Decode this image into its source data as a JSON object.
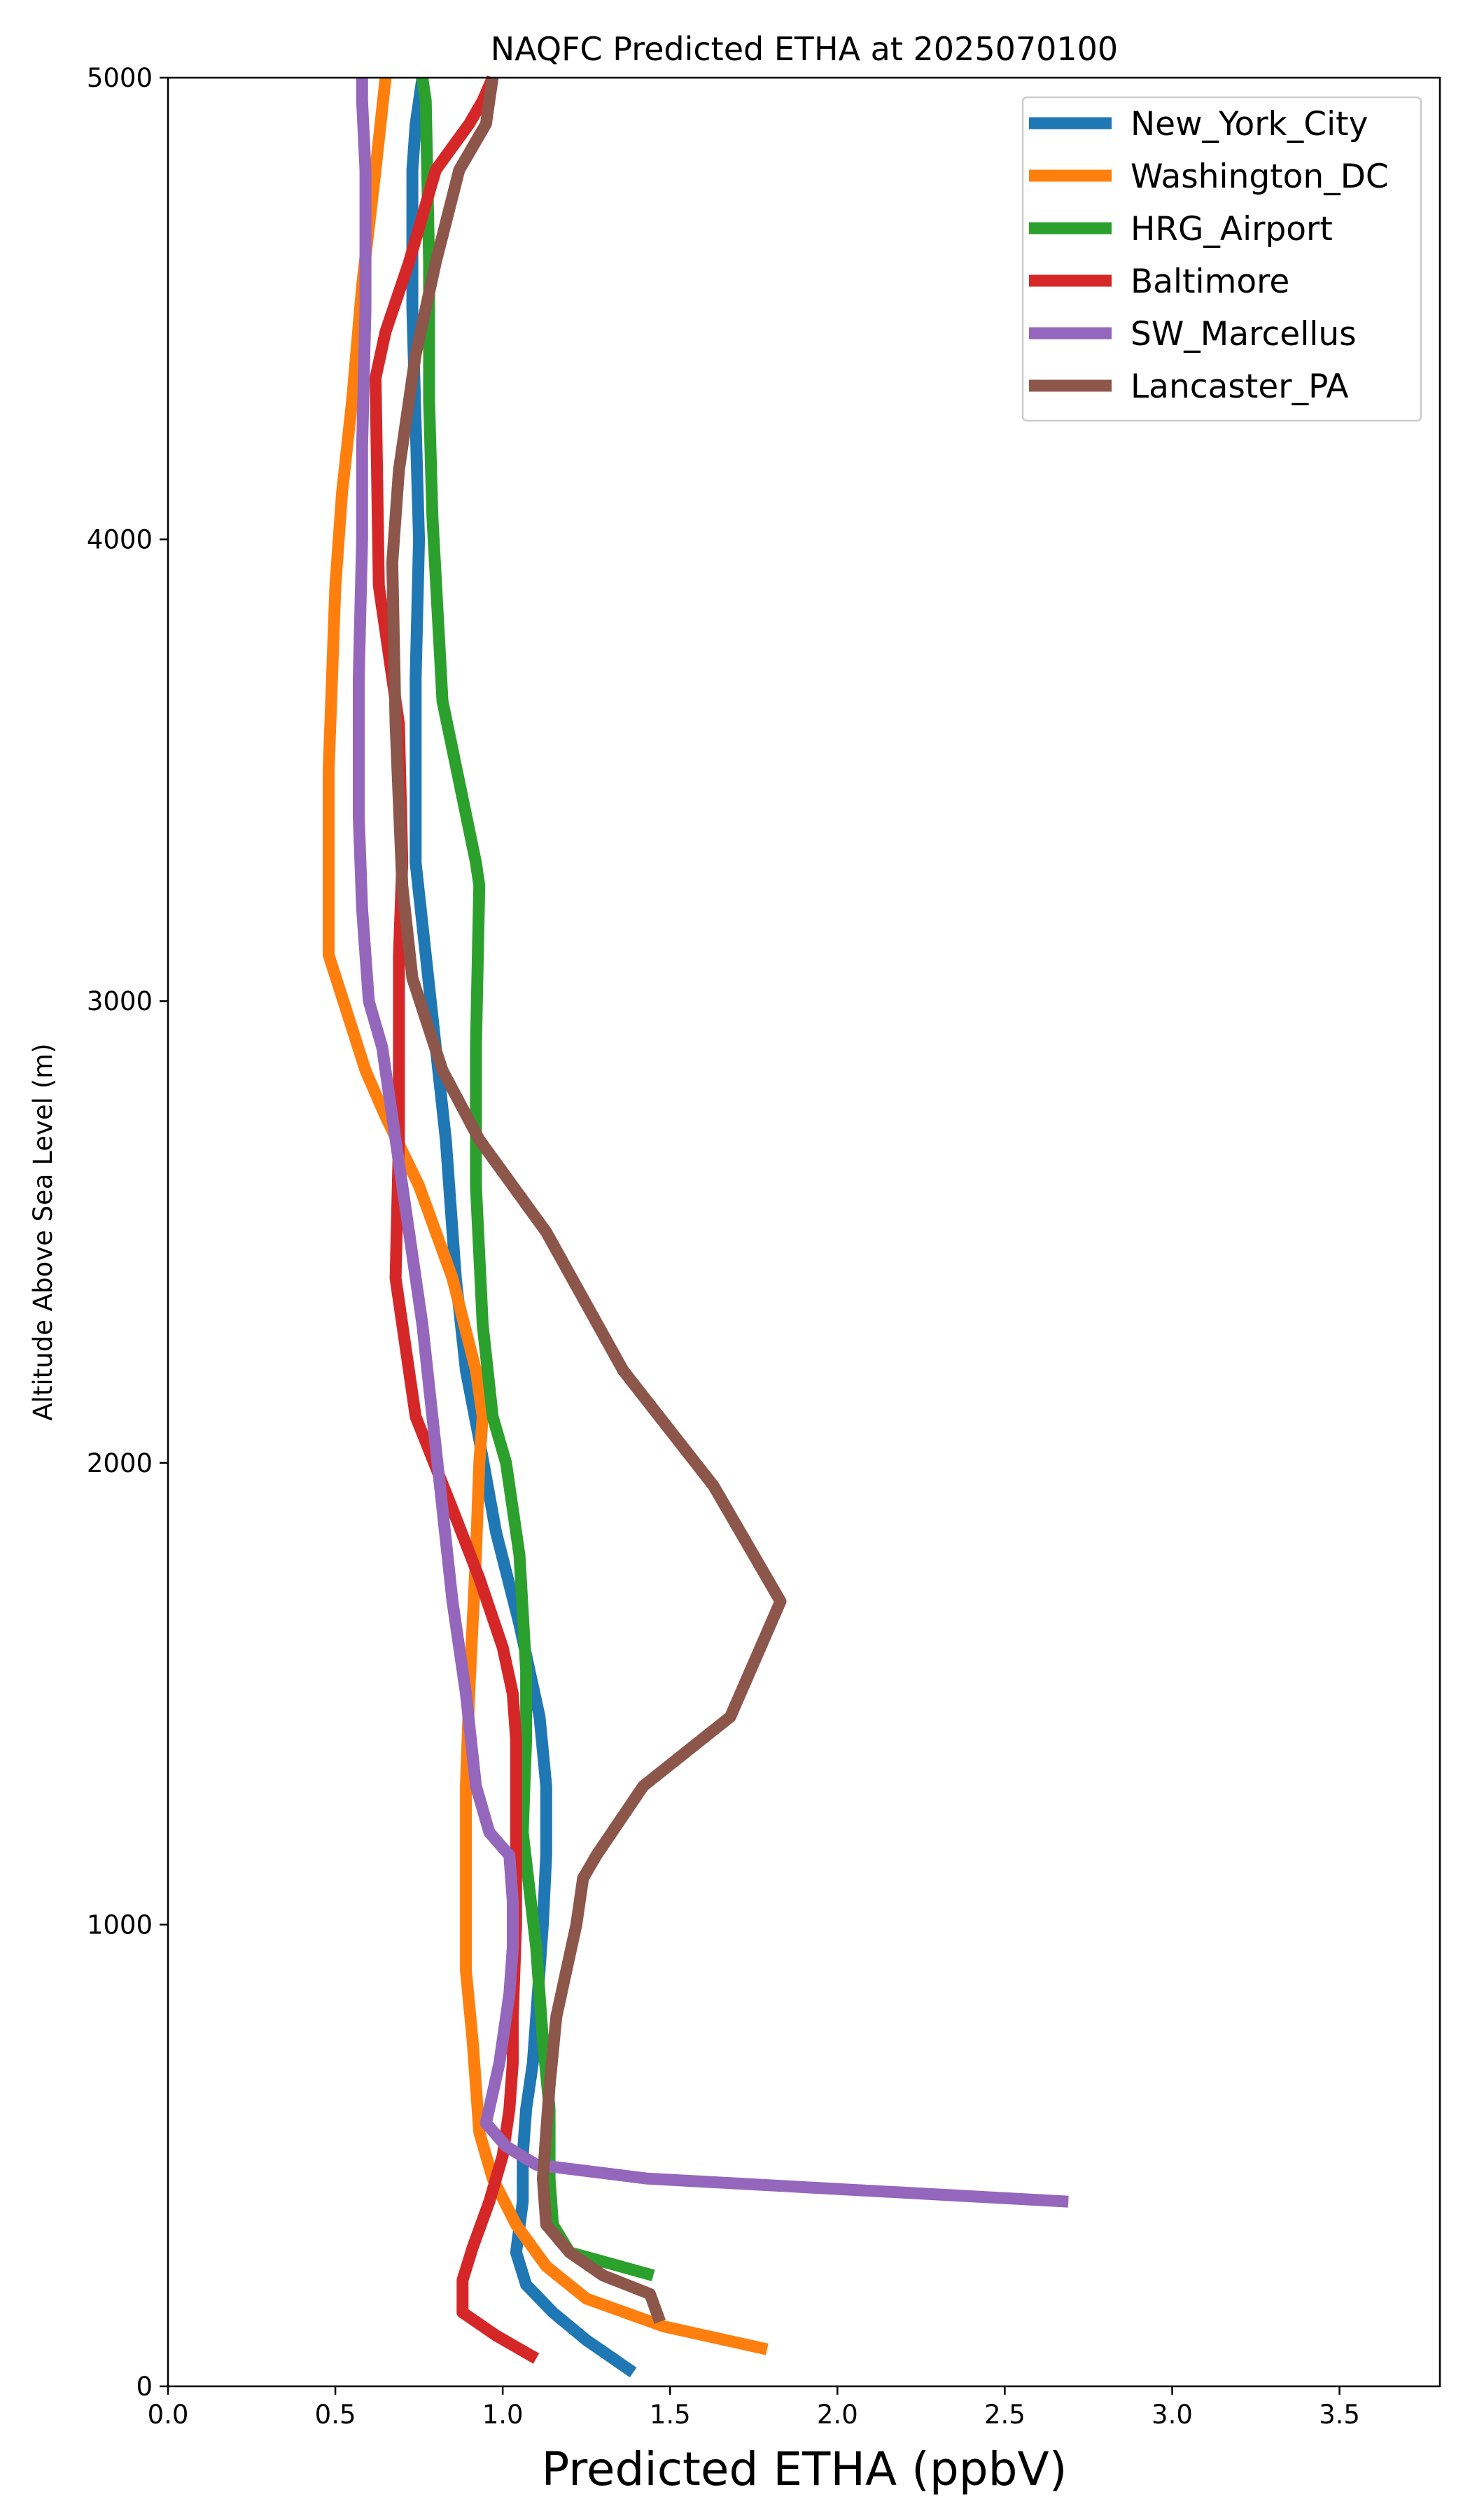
{
  "chart_data": {
    "type": "line",
    "title": "NAQFC Predicted ETHA at 2025070100",
    "xlabel": "Predicted ETHA (ppbV)",
    "ylabel": "Altitude Above Sea Level (m)",
    "xlim": [
      0,
      3.8
    ],
    "ylim": [
      0,
      5000
    ],
    "xticks": [
      "0.0",
      "0.5",
      "1.0",
      "1.5",
      "2.0",
      "2.5",
      "3.0",
      "3.5"
    ],
    "yticks": [
      "0",
      "1000",
      "2000",
      "3000",
      "4000",
      "5000"
    ],
    "grid": false,
    "legend": "top-right",
    "series": [
      {
        "name": "New_York_City",
        "color": "#1f77b4",
        "x": [
          1.39,
          1.25,
          1.15,
          1.07,
          1.04,
          1.06,
          1.06,
          1.07,
          1.09,
          1.1,
          1.12,
          1.13,
          1.13,
          1.11,
          1.05,
          0.98,
          0.93,
          0.89,
          0.86,
          0.83,
          0.8,
          0.77,
          0.74,
          0.74,
          0.74,
          0.75,
          0.74,
          0.73,
          0.73,
          0.74,
          0.76
        ],
        "y": [
          30,
          100,
          160,
          220,
          290,
          400,
          500,
          600,
          700,
          800,
          1000,
          1150,
          1300,
          1450,
          1650,
          1850,
          2050,
          2200,
          2400,
          2700,
          2900,
          3100,
          3300,
          3500,
          3700,
          4000,
          4250,
          4500,
          4800,
          4900,
          5000
        ]
      },
      {
        "name": "Washington_DC",
        "color": "#ff7f0e",
        "x": [
          1.79,
          1.48,
          1.25,
          1.13,
          1.04,
          0.97,
          0.93,
          0.91,
          0.89,
          0.89,
          0.89,
          0.9,
          0.91,
          0.92,
          0.93,
          0.94,
          0.92,
          0.85,
          0.75,
          0.65,
          0.59,
          0.48,
          0.48,
          0.49,
          0.5,
          0.52,
          0.55,
          0.58,
          0.62,
          0.65
        ],
        "y": [
          80,
          130,
          190,
          260,
          350,
          450,
          550,
          750,
          900,
          1100,
          1300,
          1500,
          1650,
          1800,
          2000,
          2100,
          2200,
          2400,
          2600,
          2750,
          2850,
          3100,
          3500,
          3700,
          3900,
          4100,
          4300,
          4550,
          4800,
          5000
        ]
      },
      {
        "name": "HRG_Airport",
        "color": "#2ca02c",
        "x": [
          1.45,
          1.2,
          1.15,
          1.14,
          1.14,
          1.12,
          1.1,
          1.06,
          1.07,
          1.07,
          1.05,
          1.01,
          0.97,
          0.94,
          0.92,
          0.92,
          0.93,
          0.92,
          0.82,
          0.79,
          0.78,
          0.78,
          0.77,
          0.76
        ],
        "y": [
          240,
          290,
          350,
          450,
          600,
          750,
          950,
          1200,
          1400,
          1550,
          1800,
          2000,
          2100,
          2300,
          2600,
          2900,
          3250,
          3300,
          3650,
          4050,
          4300,
          4600,
          4950,
          5000
        ]
      },
      {
        "name": "Baltimore",
        "color": "#d62728",
        "x": [
          1.1,
          0.98,
          0.88,
          0.88,
          0.91,
          0.96,
          1.0,
          1.02,
          1.03,
          1.03,
          1.04,
          1.04,
          1.04,
          1.04,
          1.03,
          1.0,
          0.93,
          0.85,
          0.74,
          0.68,
          0.69,
          0.69,
          0.69,
          0.7,
          0.69,
          0.63,
          0.62,
          0.65,
          0.72,
          0.8,
          0.85,
          0.9,
          0.94,
          0.97
        ],
        "y": [
          60,
          110,
          160,
          230,
          300,
          400,
          500,
          600,
          700,
          800,
          1000,
          1200,
          1300,
          1400,
          1500,
          1600,
          1750,
          1900,
          2100,
          2400,
          2700,
          2900,
          3100,
          3300,
          3600,
          3900,
          4350,
          4450,
          4600,
          4800,
          4850,
          4900,
          4950,
          5000
        ]
      },
      {
        "name": "SW_Marcellus",
        "color": "#9467bd",
        "x": [
          2.69,
          1.43,
          1.1,
          1.01,
          0.95,
          0.99,
          1.02,
          1.03,
          1.03,
          1.02,
          0.96,
          0.92,
          0.89,
          0.85,
          0.82,
          0.79,
          0.76,
          0.72,
          0.68,
          0.64,
          0.6,
          0.58,
          0.57,
          0.57,
          0.58,
          0.58,
          0.59,
          0.59,
          0.58,
          0.58
        ],
        "y": [
          400,
          450,
          480,
          520,
          570,
          700,
          850,
          950,
          1050,
          1150,
          1200,
          1300,
          1500,
          1700,
          1900,
          2100,
          2300,
          2500,
          2700,
          2900,
          3000,
          3200,
          3400,
          3700,
          4000,
          4200,
          4500,
          4800,
          4950,
          5000
        ]
      },
      {
        "name": "Lancaster_PA",
        "color": "#8c564b",
        "x": [
          1.47,
          1.44,
          1.3,
          1.2,
          1.13,
          1.12,
          1.13,
          1.14,
          1.16,
          1.19,
          1.22,
          1.24,
          1.28,
          1.42,
          1.68,
          1.83,
          1.63,
          1.36,
          1.13,
          0.93,
          0.82,
          0.73,
          0.7,
          0.68,
          0.67,
          0.69,
          0.74,
          0.8,
          0.87,
          0.95,
          0.96,
          0.97
        ],
        "y": [
          140,
          200,
          240,
          290,
          350,
          450,
          550,
          650,
          800,
          900,
          1000,
          1100,
          1150,
          1300,
          1450,
          1700,
          1950,
          2200,
          2500,
          2700,
          2850,
          3050,
          3250,
          3600,
          3950,
          4150,
          4400,
          4600,
          4800,
          4900,
          4950,
          5000
        ]
      }
    ]
  }
}
